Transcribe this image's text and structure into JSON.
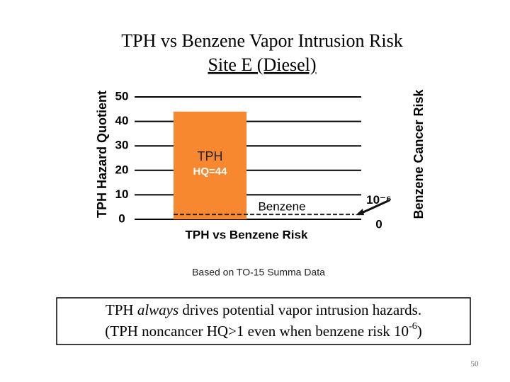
{
  "chart_data": {
    "type": "bar",
    "title": "TPH vs Benzene Vapor Intrusion Risk",
    "subtitle": "Site E (Diesel)",
    "y_label": "TPH Hazard Quotient",
    "y2_label": "Benzene Cancer Risk",
    "categories": [
      "TPH vs Benzene Risk"
    ],
    "series": [
      {
        "name": "TPH",
        "color": "#f7882f",
        "values": [
          44
        ],
        "value_labels": [
          "HQ=44"
        ]
      },
      {
        "name": "Benzene",
        "color": "#222222",
        "values": [
          2e-07
        ],
        "axis": "y2",
        "line_style": "dashed"
      }
    ],
    "ylim": [
      0,
      50
    ],
    "yticks": [
      0,
      10,
      20,
      30,
      40,
      50
    ],
    "y2lim": [
      0,
      5e-06
    ],
    "y2ticks": [
      {
        "value": 0,
        "label": "0"
      },
      {
        "value": 1e-06,
        "label": "10⁻⁶"
      }
    ],
    "grid": true,
    "grid_color": "#000000",
    "note": "Based on TO-15 Summa Data",
    "caption": {
      "line1": [
        "TPH ",
        "always",
        " drives potential vapor intrusion hazards."
      ],
      "line2": [
        "(TPH noncancer HQ>1 even when benzene risk 10",
        "-6",
        ")"
      ]
    },
    "page_number": "50"
  }
}
